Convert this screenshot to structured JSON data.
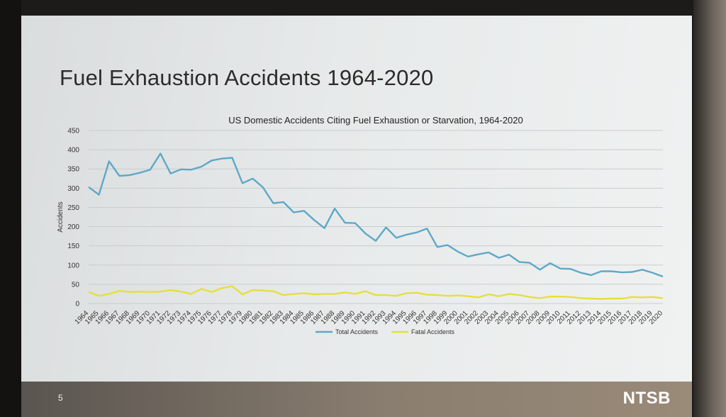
{
  "slide": {
    "title": "Fuel Exhaustion Accidents 1964-2020",
    "page_number": "5",
    "logo": "NTSB"
  },
  "colors": {
    "total": "#5fa8c8",
    "fatal": "#e6df3c",
    "grid": "#c9cccd"
  },
  "chart_data": {
    "type": "line",
    "title": "US Domestic Accidents Citing Fuel Exhaustion or Starvation, 1964-2020",
    "xlabel": "",
    "ylabel": "Accidents",
    "ylim": [
      0,
      450
    ],
    "yticks": [
      0,
      50,
      100,
      150,
      200,
      250,
      300,
      350,
      400,
      450
    ],
    "grid": true,
    "legend_position": "bottom",
    "x": [
      "1964",
      "1965",
      "1966",
      "1967",
      "1968",
      "1969",
      "1970",
      "1971",
      "1972",
      "1973",
      "1974",
      "1975",
      "1976",
      "1977",
      "1978",
      "1979",
      "1980",
      "1981",
      "1982",
      "1983",
      "1984",
      "1985",
      "1986",
      "1987",
      "1988",
      "1989",
      "1990",
      "1991",
      "1992",
      "1993",
      "1994",
      "1995",
      "1996",
      "1997",
      "1998",
      "1999",
      "2000",
      "2001",
      "2002",
      "2003",
      "2004",
      "2005",
      "2006",
      "2007",
      "2008",
      "2009",
      "2010",
      "2011",
      "2012",
      "2013",
      "2014",
      "2015",
      "2016",
      "2017",
      "2018",
      "2019",
      "2020"
    ],
    "series": [
      {
        "name": "Total Accidents",
        "values": [
          303,
          283,
          370,
          332,
          334,
          340,
          348,
          390,
          338,
          349,
          348,
          356,
          372,
          377,
          379,
          313,
          325,
          302,
          261,
          264,
          237,
          241,
          217,
          196,
          247,
          210,
          209,
          182,
          163,
          198,
          171,
          179,
          185,
          195,
          147,
          152,
          135,
          122,
          128,
          133,
          119,
          127,
          108,
          106,
          88,
          105,
          91,
          90,
          80,
          74,
          84,
          84,
          81,
          82,
          88,
          80,
          70
        ]
      },
      {
        "name": "Fatal Accidents",
        "values": [
          30,
          20,
          25,
          33,
          30,
          31,
          30,
          31,
          35,
          31,
          25,
          38,
          30,
          40,
          45,
          24,
          35,
          34,
          32,
          22,
          25,
          27,
          24,
          25,
          25,
          29,
          25,
          32,
          22,
          22,
          20,
          27,
          28,
          23,
          22,
          20,
          21,
          19,
          16,
          24,
          19,
          25,
          22,
          17,
          14,
          18,
          18,
          17,
          14,
          13,
          12,
          13,
          13,
          17,
          16,
          17,
          14
        ]
      }
    ]
  }
}
